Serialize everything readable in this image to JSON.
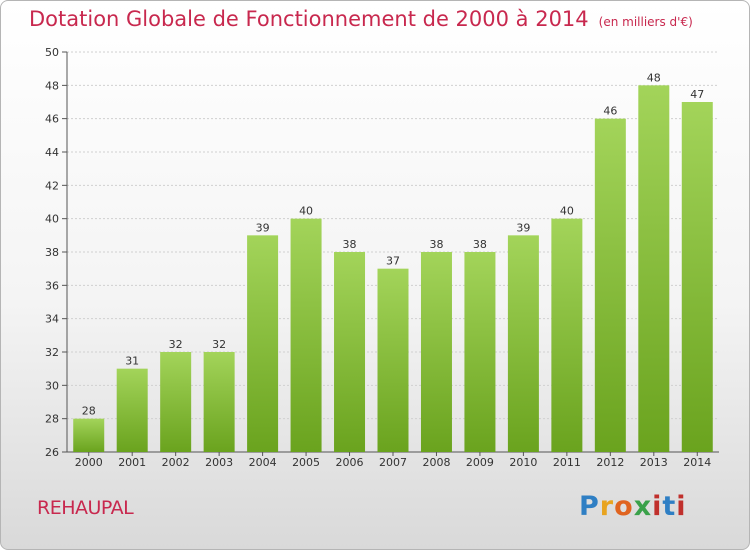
{
  "header": {
    "title": "Dotation Globale de Fonctionnement de 2000 à 2014",
    "unit_note": "(en milliers d'€)"
  },
  "footer": {
    "commune": "REHAUPAL",
    "logo_text": "Proxiti"
  },
  "colors": {
    "title": "#c8284e",
    "bar_light": "#a3d45a",
    "bar_dark": "#6aa31e",
    "grid": "#d0d0d0"
  },
  "chart_data": {
    "type": "bar",
    "title": "Dotation Globale de Fonctionnement de 2000 à 2014",
    "subtitle": "(en milliers d'€)",
    "xlabel": "",
    "ylabel": "",
    "categories": [
      "2000",
      "2001",
      "2002",
      "2003",
      "2004",
      "2005",
      "2006",
      "2007",
      "2008",
      "2009",
      "2010",
      "2011",
      "2012",
      "2013",
      "2014"
    ],
    "values": [
      28,
      31,
      32,
      32,
      39,
      40,
      38,
      37,
      38,
      38,
      39,
      40,
      46,
      48,
      47
    ],
    "ylim": [
      26,
      50
    ],
    "yticks": [
      26,
      28,
      30,
      32,
      34,
      36,
      38,
      40,
      42,
      44,
      46,
      48,
      50
    ],
    "grid": true,
    "legend": "none",
    "data_labels": true
  }
}
